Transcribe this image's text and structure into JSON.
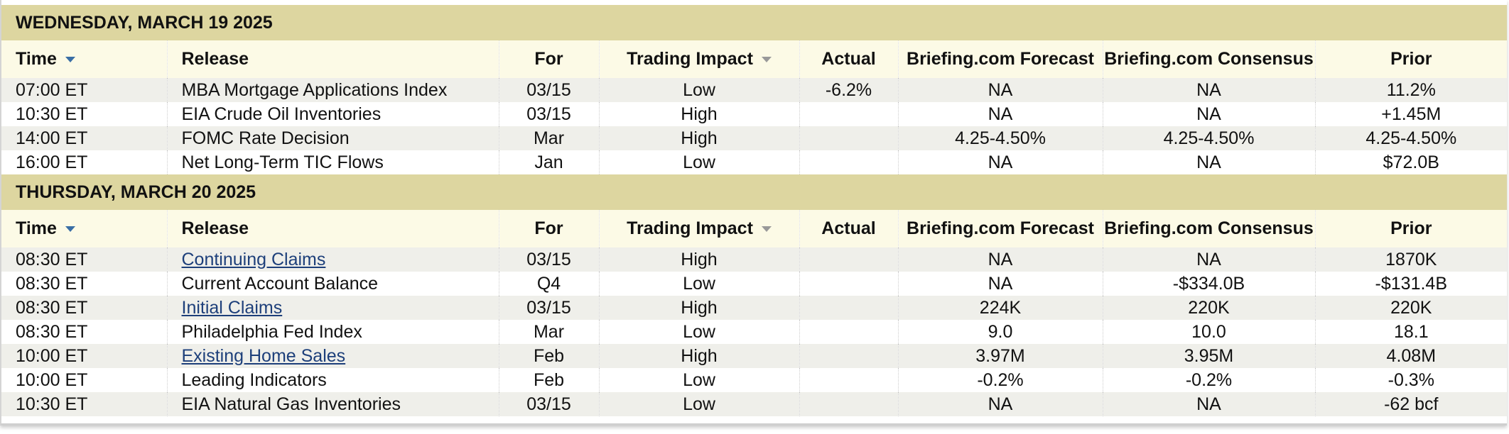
{
  "days": [
    {
      "title": "WEDNESDAY, MARCH 19 2025",
      "columns": [
        "Time",
        "Release",
        "For",
        "Trading Impact",
        "Actual",
        "Briefing.com Forecast",
        "Briefing.com Consensus",
        "Prior"
      ],
      "rows": [
        [
          "07:00 ET",
          "MBA Mortgage Applications Index",
          "03/15",
          "Low",
          "-6.2%",
          "NA",
          "NA",
          "11.2%"
        ],
        [
          "10:30 ET",
          "EIA Crude Oil Inventories",
          "03/15",
          "High",
          "",
          "NA",
          "NA",
          "+1.45M"
        ],
        [
          "14:00 ET",
          "FOMC Rate Decision",
          "Mar",
          "High",
          "",
          "4.25-4.50%",
          "4.25-4.50%",
          "4.25-4.50%"
        ],
        [
          "16:00 ET",
          "Net Long-Term TIC Flows",
          "Jan",
          "Low",
          "",
          "NA",
          "NA",
          "$72.0B"
        ]
      ]
    },
    {
      "title": "THURSDAY, MARCH 20 2025",
      "columns": [
        "Time",
        "Release",
        "For",
        "Trading Impact",
        "Actual",
        "Briefing.com Forecast",
        "Briefing.com Consensus",
        "Prior"
      ],
      "rows": [
        [
          "08:30 ET",
          "Continuing Claims",
          "03/15",
          "High",
          "",
          "NA",
          "NA",
          "1870K"
        ],
        [
          "08:30 ET",
          "Current Account Balance",
          "Q4",
          "Low",
          "",
          "NA",
          "-$334.0B",
          "-$131.4B"
        ],
        [
          "08:30 ET",
          "Initial Claims",
          "03/15",
          "High",
          "",
          "224K",
          "220K",
          "220K"
        ],
        [
          "08:30 ET",
          "Philadelphia Fed Index",
          "Mar",
          "Low",
          "",
          "9.0",
          "10.0",
          "18.1"
        ],
        [
          "10:00 ET",
          "Existing Home Sales",
          "Feb",
          "High",
          "",
          "3.97M",
          "3.95M",
          "4.08M"
        ],
        [
          "10:00 ET",
          "Leading Indicators",
          "Feb",
          "Low",
          "",
          "-0.2%",
          "-0.2%",
          "-0.3%"
        ],
        [
          "10:30 ET",
          "EIA Natural Gas Inventories",
          "03/15",
          "Low",
          "",
          "NA",
          "NA",
          "-62 bcf"
        ]
      ]
    }
  ]
}
